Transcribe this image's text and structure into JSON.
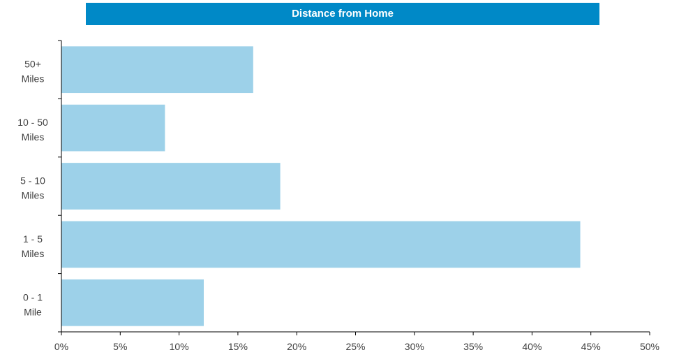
{
  "chart_data": {
    "type": "bar",
    "orientation": "horizontal",
    "title": "Distance from Home",
    "categories": [
      "50+ Miles",
      "10 - 50 Miles",
      "5 - 10 Miles",
      "1 - 5 Miles",
      "0 - 1 Mile"
    ],
    "category_lines": [
      [
        "50+",
        "Miles"
      ],
      [
        "10 - 50",
        "Miles"
      ],
      [
        "5 - 10",
        "Miles"
      ],
      [
        "1 - 5",
        "Miles"
      ],
      [
        "0 - 1",
        "Mile"
      ]
    ],
    "values": [
      16.3,
      8.8,
      18.6,
      44.1,
      12.1
    ],
    "xlim": [
      0,
      50
    ],
    "x_tick_labels": [
      "0%",
      "5%",
      "10%",
      "15%",
      "20%",
      "25%",
      "30%",
      "35%",
      "40%",
      "45%",
      "50%"
    ],
    "grid": false,
    "legend": "none",
    "colors": {
      "bar": "#9DD1E9",
      "title_bar": "#0089C7",
      "axis": "#000000",
      "text": "#404040"
    }
  }
}
